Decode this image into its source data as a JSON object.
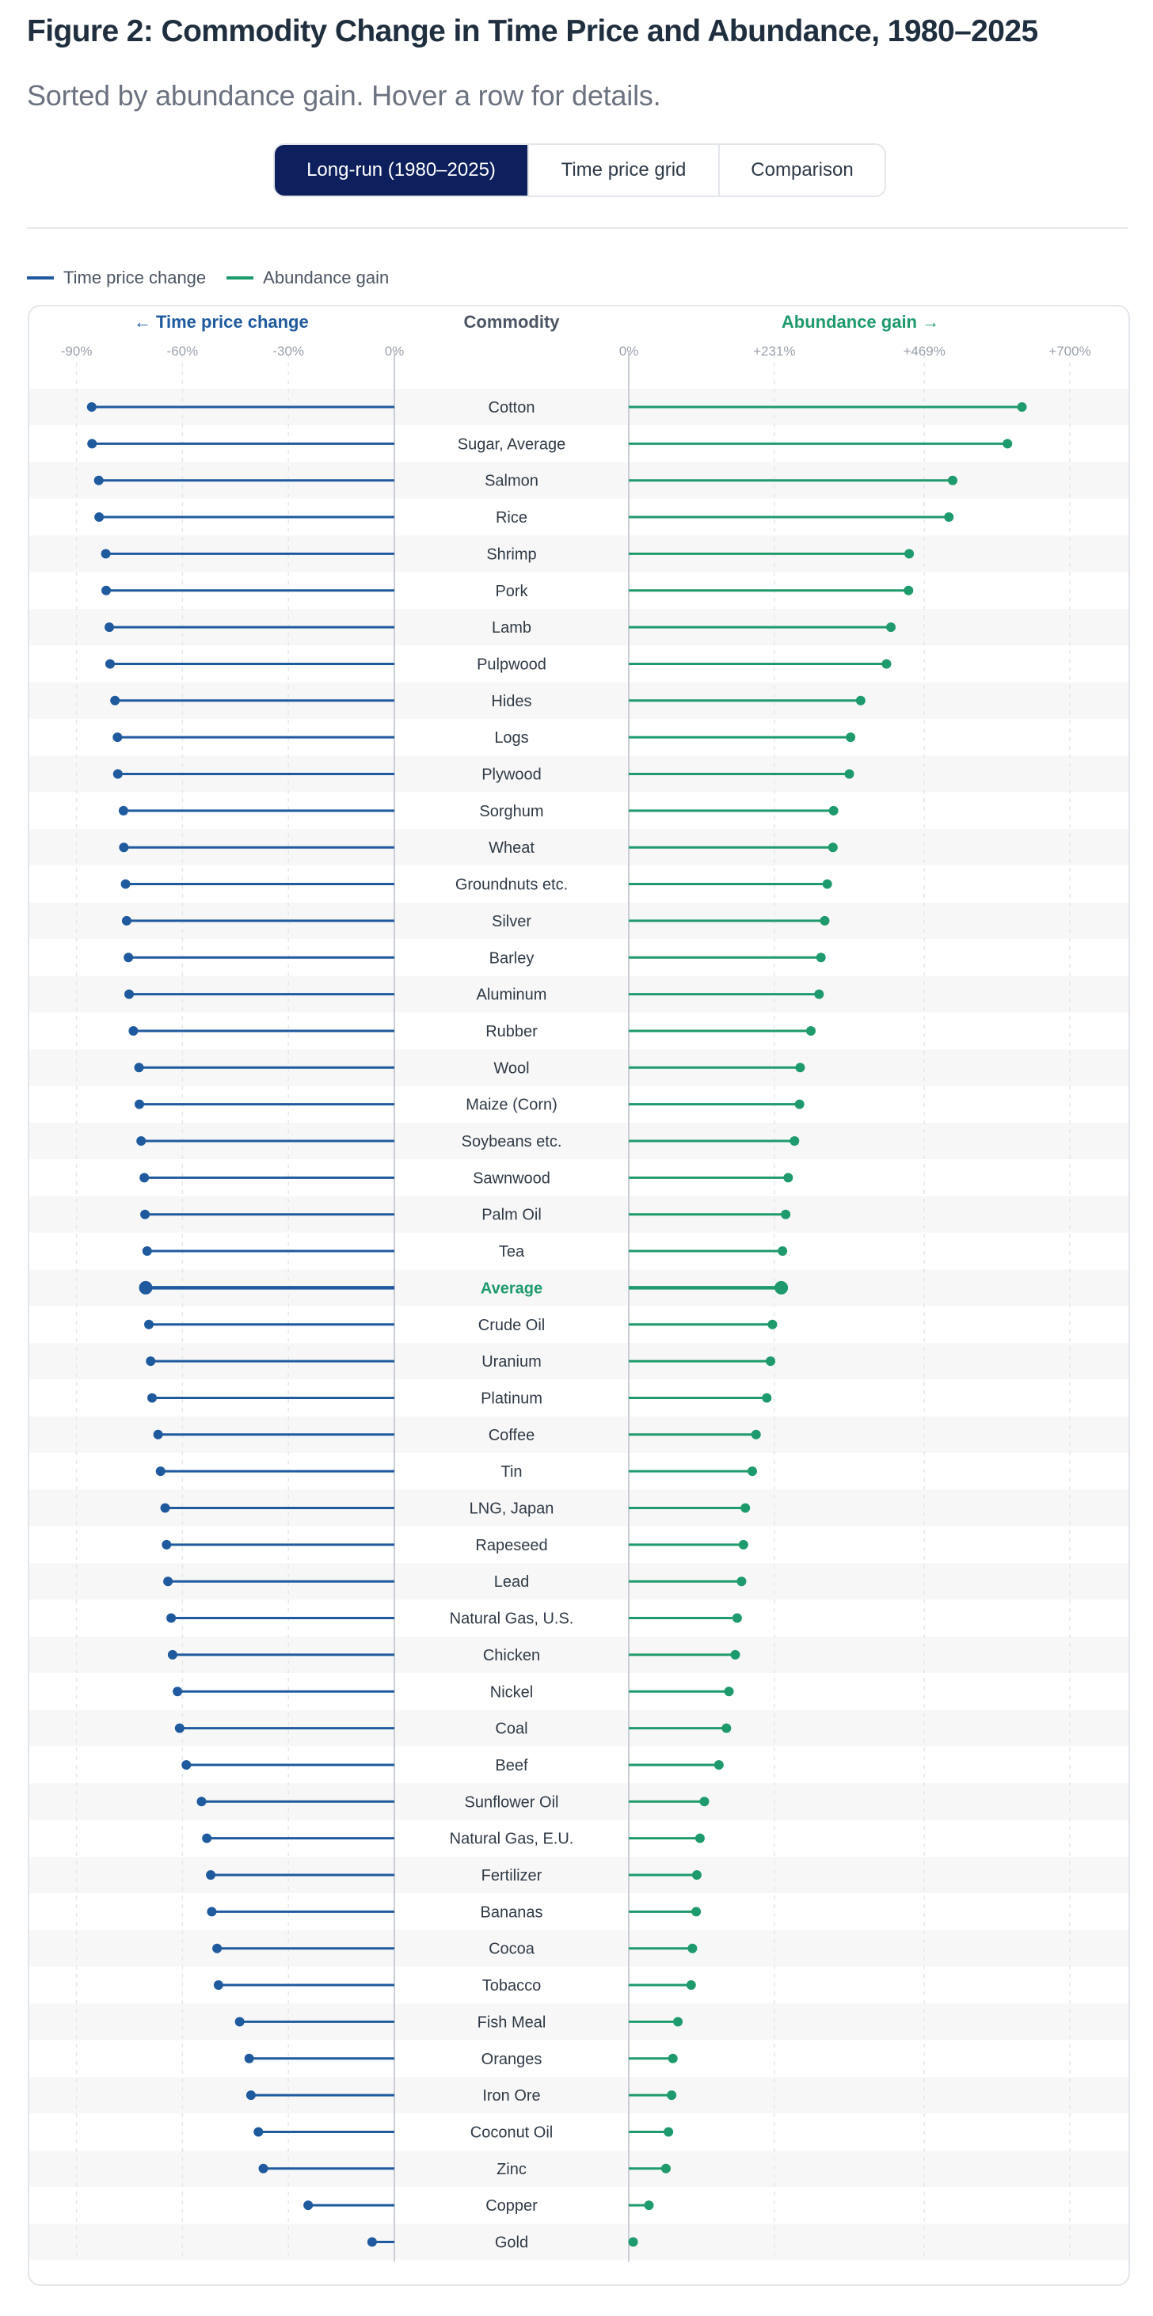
{
  "title": "Figure 2: Commodity Change in Time Price and Abundance, 1980–2025",
  "subtitle": "Sorted by abundance gain. Hover a row for details.",
  "tabs": [
    {
      "label": "Long-run (1980–2025)",
      "active": true
    },
    {
      "label": "Time price grid",
      "active": false
    },
    {
      "label": "Comparison",
      "active": false
    }
  ],
  "legend": {
    "time_price": "Time price change",
    "abundance": "Abundance gain"
  },
  "colors": {
    "time_price": "#1f5a9e",
    "abundance": "#1e9a6c",
    "highlight_label": "#1e9a6c",
    "row_stripe": "#f7f7f7"
  },
  "chart_data": {
    "type": "dumbbell",
    "left_panel": {
      "title": "← Time price change",
      "ticks": [
        "-90%",
        "-60%",
        "-30%",
        "0%"
      ],
      "tick_values": [
        -90,
        -60,
        -30,
        0
      ],
      "xlim": [
        -100,
        0
      ]
    },
    "center_header": "Commodity",
    "right_panel": {
      "title": "Abundance gain →",
      "ticks": [
        "0%",
        "+231%",
        "+469%",
        "+700%"
      ],
      "tick_values": [
        0,
        231,
        469,
        700
      ],
      "xlim": [
        0,
        700
      ]
    },
    "highlight_row": "Average",
    "rows": [
      {
        "name": "Cotton",
        "time_price_change": -85.7,
        "abundance_gain": 624
      },
      {
        "name": "Sugar, Average",
        "time_price_change": -85.6,
        "abundance_gain": 601
      },
      {
        "name": "Salmon",
        "time_price_change": -83.7,
        "abundance_gain": 514
      },
      {
        "name": "Rice",
        "time_price_change": -83.6,
        "abundance_gain": 508
      },
      {
        "name": "Shrimp",
        "time_price_change": -81.7,
        "abundance_gain": 445
      },
      {
        "name": "Pork",
        "time_price_change": -81.6,
        "abundance_gain": 444
      },
      {
        "name": "Lamb",
        "time_price_change": -80.7,
        "abundance_gain": 416
      },
      {
        "name": "Pulpwood",
        "time_price_change": -80.5,
        "abundance_gain": 409
      },
      {
        "name": "Hides",
        "time_price_change": -79.1,
        "abundance_gain": 368
      },
      {
        "name": "Logs",
        "time_price_change": -78.4,
        "abundance_gain": 352
      },
      {
        "name": "Plywood",
        "time_price_change": -78.3,
        "abundance_gain": 350
      },
      {
        "name": "Sorghum",
        "time_price_change": -76.7,
        "abundance_gain": 325
      },
      {
        "name": "Wheat",
        "time_price_change": -76.6,
        "abundance_gain": 324
      },
      {
        "name": "Groundnuts etc.",
        "time_price_change": -76.1,
        "abundance_gain": 315
      },
      {
        "name": "Silver",
        "time_price_change": -75.8,
        "abundance_gain": 311
      },
      {
        "name": "Barley",
        "time_price_change": -75.3,
        "abundance_gain": 305
      },
      {
        "name": "Aluminum",
        "time_price_change": -75.1,
        "abundance_gain": 302
      },
      {
        "name": "Rubber",
        "time_price_change": -73.9,
        "abundance_gain": 289
      },
      {
        "name": "Wool",
        "time_price_change": -72.3,
        "abundance_gain": 272
      },
      {
        "name": "Maize (Corn)",
        "time_price_change": -72.2,
        "abundance_gain": 271
      },
      {
        "name": "Soybeans etc.",
        "time_price_change": -71.7,
        "abundance_gain": 263
      },
      {
        "name": "Sawnwood",
        "time_price_change": -70.8,
        "abundance_gain": 253
      },
      {
        "name": "Palm Oil",
        "time_price_change": -70.6,
        "abundance_gain": 249
      },
      {
        "name": "Tea",
        "time_price_change": -70.0,
        "abundance_gain": 244
      },
      {
        "name": "Average",
        "time_price_change": -70.4,
        "abundance_gain": 242
      },
      {
        "name": "Crude Oil",
        "time_price_change": -69.5,
        "abundance_gain": 228
      },
      {
        "name": "Uranium",
        "time_price_change": -69.0,
        "abundance_gain": 225
      },
      {
        "name": "Platinum",
        "time_price_change": -68.6,
        "abundance_gain": 219
      },
      {
        "name": "Coffee",
        "time_price_change": -66.9,
        "abundance_gain": 202
      },
      {
        "name": "Tin",
        "time_price_change": -66.2,
        "abundance_gain": 196
      },
      {
        "name": "LNG, Japan",
        "time_price_change": -64.9,
        "abundance_gain": 185
      },
      {
        "name": "Rapeseed",
        "time_price_change": -64.5,
        "abundance_gain": 182
      },
      {
        "name": "Lead",
        "time_price_change": -64.1,
        "abundance_gain": 179
      },
      {
        "name": "Natural Gas, U.S.",
        "time_price_change": -63.2,
        "abundance_gain": 172
      },
      {
        "name": "Chicken",
        "time_price_change": -62.8,
        "abundance_gain": 169
      },
      {
        "name": "Nickel",
        "time_price_change": -61.4,
        "abundance_gain": 159
      },
      {
        "name": "Coal",
        "time_price_change": -60.8,
        "abundance_gain": 155
      },
      {
        "name": "Beef",
        "time_price_change": -58.9,
        "abundance_gain": 143
      },
      {
        "name": "Sunflower Oil",
        "time_price_change": -54.6,
        "abundance_gain": 120
      },
      {
        "name": "Natural Gas, E.U.",
        "time_price_change": -53.1,
        "abundance_gain": 113
      },
      {
        "name": "Fertilizer",
        "time_price_change": -52.0,
        "abundance_gain": 108
      },
      {
        "name": "Bananas",
        "time_price_change": -51.7,
        "abundance_gain": 107
      },
      {
        "name": "Cocoa",
        "time_price_change": -50.2,
        "abundance_gain": 101
      },
      {
        "name": "Tobacco",
        "time_price_change": -49.8,
        "abundance_gain": 99
      },
      {
        "name": "Fish Meal",
        "time_price_change": -43.8,
        "abundance_gain": 78
      },
      {
        "name": "Oranges",
        "time_price_change": -41.1,
        "abundance_gain": 70
      },
      {
        "name": "Iron Ore",
        "time_price_change": -40.6,
        "abundance_gain": 68
      },
      {
        "name": "Coconut Oil",
        "time_price_change": -38.5,
        "abundance_gain": 63
      },
      {
        "name": "Zinc",
        "time_price_change": -37.1,
        "abundance_gain": 59
      },
      {
        "name": "Copper",
        "time_price_change": -24.4,
        "abundance_gain": 32
      },
      {
        "name": "Gold",
        "time_price_change": -6.3,
        "abundance_gain": 7
      }
    ]
  }
}
